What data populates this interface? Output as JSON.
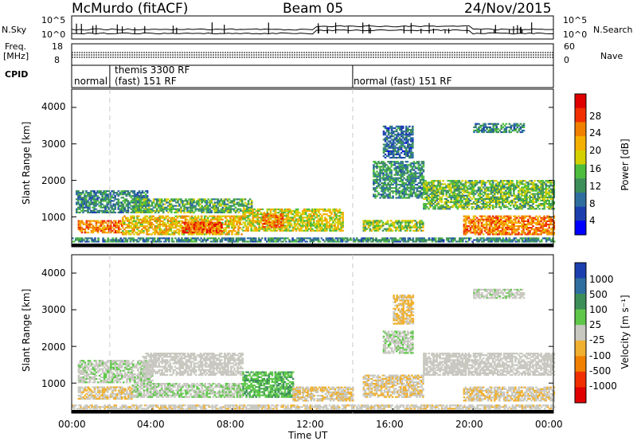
{
  "header": {
    "station": "McMurdo (fitACF)",
    "beam": "Beam 05",
    "date": "24/Nov/2015"
  },
  "strip_labels": {
    "nsky": "N.Sky",
    "nsky_ticks": [
      "10^5",
      "10^0"
    ],
    "nsearch": "N.Search",
    "nsearch_ticks": [
      "10^5",
      "10^0"
    ],
    "freq_top": "Freq.",
    "freq_unit": "[MHz]",
    "freq_ticks": [
      "18",
      "8"
    ],
    "nave": "Nave",
    "nave_ticks": [
      "60",
      "0"
    ],
    "cpid": "CPID"
  },
  "cpid_segments": [
    {
      "name": "normal",
      "start_h": 0,
      "end_h": 1.9
    },
    {
      "name": "themis 3300 RF",
      "start_h": 1.9,
      "end_h": 2.0
    },
    {
      "name": "(fast) 151 RF",
      "start_h": 2.0,
      "end_h": 14.0
    },
    {
      "name": "normal (fast) 151 RF",
      "start_h": 14.0,
      "end_h": 24
    }
  ],
  "x_axis": {
    "label": "Time UT",
    "ticks": [
      "00:00",
      "04:00",
      "08:00",
      "12:00",
      "16:00",
      "20:00",
      "00:00"
    ],
    "range_h": [
      0,
      24
    ]
  },
  "power_panel": {
    "ylabel": "Slant Range [km]",
    "yticks": [
      "4000",
      "3000",
      "2000",
      "1000"
    ],
    "colorbar_label": "Power [dB]",
    "colorbar_ticks": [
      "28",
      "24",
      "20",
      "16",
      "12",
      "8",
      "4"
    ],
    "colors": [
      "#0000ff",
      "#1c3fb0",
      "#2f6fa0",
      "#3d8f5a",
      "#4dbd3d",
      "#d4d000",
      "#f4b000",
      "#f08000",
      "#f03000",
      "#e00000"
    ]
  },
  "velocity_panel": {
    "ylabel": "Slant Range [km]",
    "yticks": [
      "4000",
      "3000",
      "2000",
      "1000"
    ],
    "colorbar_label": "Velocity [m s⁻¹]",
    "colorbar_ticks": [
      "1000",
      "500",
      "100",
      "25",
      "-25",
      "-100",
      "-500",
      "-1000"
    ],
    "colors": [
      "#1c3fb0",
      "#2f6fa0",
      "#3d8f5a",
      "#5fc84a",
      "#c8c8c0",
      "#f0b030",
      "#f08000",
      "#f03000",
      "#e00000"
    ]
  },
  "chart_data": [
    {
      "type": "heatmap",
      "title": "Power",
      "xlabel": "Time UT",
      "ylabel": "Slant Range [km]",
      "xlim": [
        0,
        24
      ],
      "ylim": [
        180,
        4500
      ],
      "zlabel": "Power [dB]",
      "zlim": [
        0,
        32
      ],
      "bands": [
        {
          "t0": 0.0,
          "t1": 24.0,
          "r0": 300,
          "r1": 400,
          "z": 10
        },
        {
          "t0": 0.3,
          "t1": 2.5,
          "r0": 550,
          "r1": 900,
          "z": 24
        },
        {
          "t0": 0.2,
          "t1": 3.8,
          "r0": 1100,
          "r1": 1700,
          "z": 10
        },
        {
          "t0": 2.5,
          "t1": 8.5,
          "r0": 500,
          "r1": 1000,
          "z": 20
        },
        {
          "t0": 5.5,
          "t1": 7.5,
          "r0": 550,
          "r1": 850,
          "z": 26
        },
        {
          "t0": 3.0,
          "t1": 9.0,
          "r0": 1100,
          "r1": 1500,
          "z": 13
        },
        {
          "t0": 8.5,
          "t1": 13.5,
          "r0": 600,
          "r1": 1200,
          "z": 18
        },
        {
          "t0": 9.5,
          "t1": 10.5,
          "r0": 700,
          "r1": 1100,
          "z": 24
        },
        {
          "t0": 14.5,
          "t1": 17.5,
          "r0": 600,
          "r1": 900,
          "z": 16
        },
        {
          "t0": 15.0,
          "t1": 17.5,
          "r0": 1500,
          "r1": 2500,
          "z": 11
        },
        {
          "t0": 15.5,
          "t1": 17.0,
          "r0": 2600,
          "r1": 3500,
          "z": 8
        },
        {
          "t0": 17.5,
          "t1": 24.0,
          "r0": 1200,
          "r1": 2000,
          "z": 14
        },
        {
          "t0": 19.5,
          "t1": 24.0,
          "r0": 500,
          "r1": 1000,
          "z": 24
        },
        {
          "t0": 20.0,
          "t1": 22.5,
          "r0": 3300,
          "r1": 3550,
          "z": 10
        }
      ]
    },
    {
      "type": "heatmap",
      "title": "Velocity",
      "xlabel": "Time UT",
      "ylabel": "Slant Range [km]",
      "xlim": [
        0,
        24
      ],
      "ylim": [
        180,
        4500
      ],
      "zlabel": "Velocity [m s⁻¹]",
      "zlim": [
        -1000,
        1000
      ],
      "bands": [
        {
          "t0": 0.0,
          "t1": 24.0,
          "r0": 280,
          "r1": 400,
          "z": -50
        },
        {
          "t0": 0.3,
          "t1": 3.0,
          "r0": 550,
          "r1": 900,
          "z": -100
        },
        {
          "t0": 0.3,
          "t1": 4.0,
          "r0": 1000,
          "r1": 1600,
          "z": 60
        },
        {
          "t0": 3.0,
          "t1": 8.5,
          "r0": 600,
          "r1": 1000,
          "z": 80
        },
        {
          "t0": 3.5,
          "t1": 8.5,
          "r0": 1200,
          "r1": 1800,
          "z": 0
        },
        {
          "t0": 8.5,
          "t1": 11.0,
          "r0": 600,
          "r1": 1300,
          "z": 300
        },
        {
          "t0": 11.0,
          "t1": 14.0,
          "r0": 500,
          "r1": 900,
          "z": -100
        },
        {
          "t0": 14.5,
          "t1": 17.5,
          "r0": 600,
          "r1": 1200,
          "z": -90
        },
        {
          "t0": 15.5,
          "t1": 17.0,
          "r0": 1800,
          "r1": 2400,
          "z": 60
        },
        {
          "t0": 16.0,
          "t1": 17.0,
          "r0": 2600,
          "r1": 3400,
          "z": -150
        },
        {
          "t0": 17.5,
          "t1": 24.0,
          "r0": 1200,
          "r1": 1800,
          "z": 0
        },
        {
          "t0": 19.5,
          "t1": 24.0,
          "r0": 500,
          "r1": 900,
          "z": -80
        },
        {
          "t0": 20.0,
          "t1": 22.5,
          "r0": 3300,
          "r1": 3550,
          "z": 40
        }
      ]
    }
  ]
}
